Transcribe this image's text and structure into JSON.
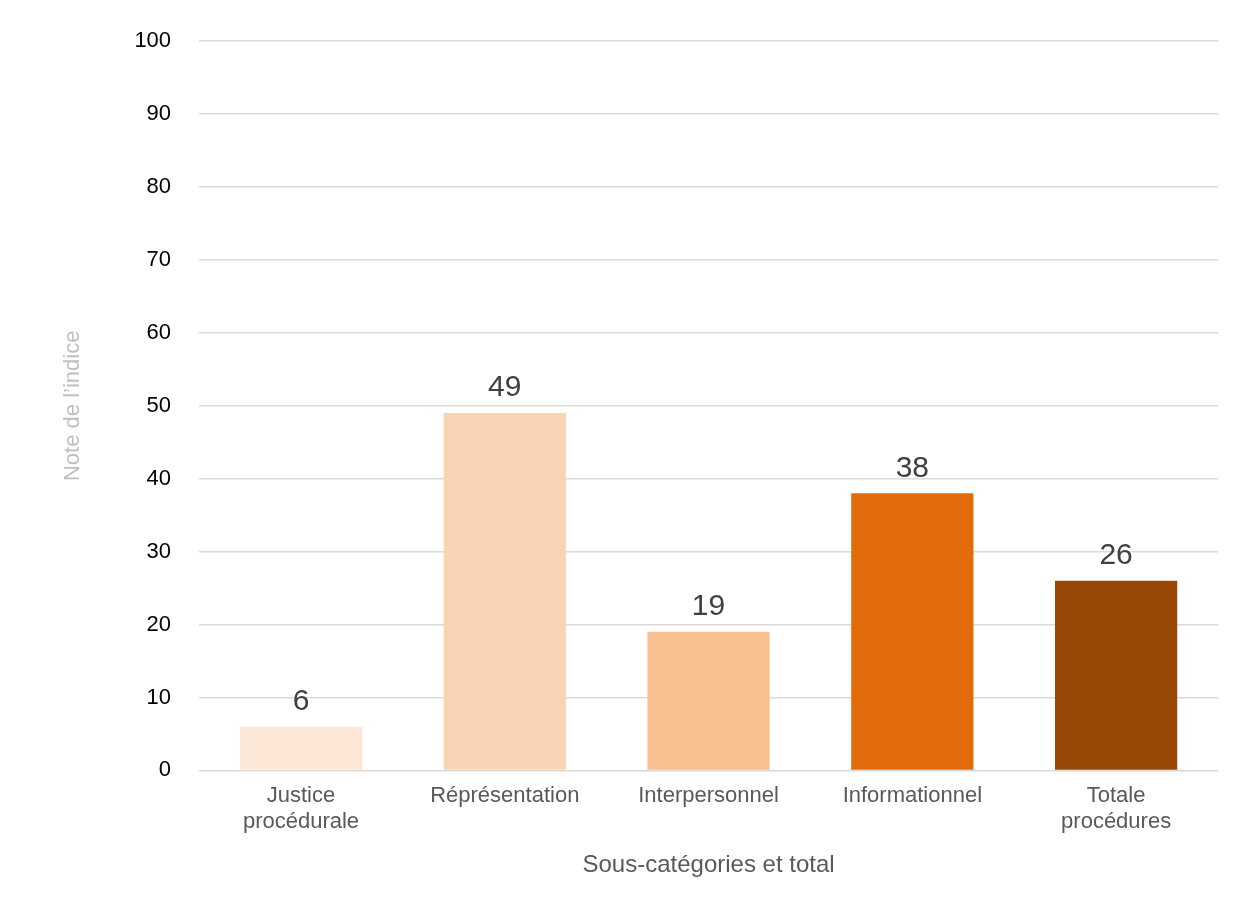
{
  "chart_data": {
    "type": "bar",
    "xlabel": "Sous-catégories et total",
    "ylabel": "Note de l’indice",
    "categories": [
      "Justice procédurale",
      "Réprésentation",
      "Interpersonnel",
      "Informationnel",
      "Totale procédures"
    ],
    "values": [
      6,
      49,
      19,
      38,
      26
    ],
    "colors": [
      "#fce6d6",
      "#f9d4b4",
      "#f8c090",
      "#e36c0a",
      "#984807"
    ],
    "ylim": [
      0,
      100
    ],
    "yticks": [
      0,
      10,
      20,
      30,
      40,
      50,
      60,
      70,
      80,
      90,
      100
    ],
    "grid": "y",
    "legend": false,
    "data_labels": true
  }
}
